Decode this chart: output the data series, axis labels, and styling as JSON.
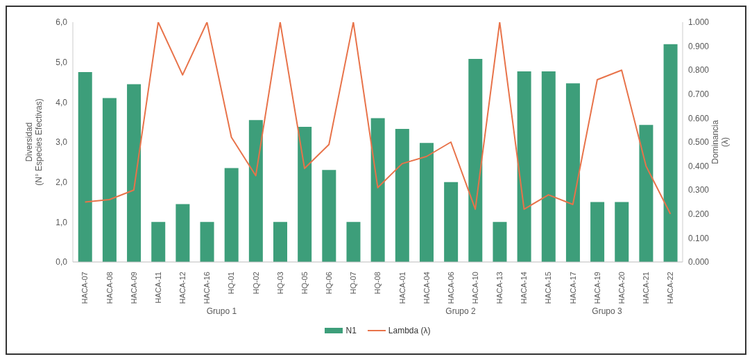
{
  "chart_data": {
    "type": "bar",
    "categories": [
      "HACA-07",
      "HACA-08",
      "HACA-09",
      "HACA-11",
      "HACA-12",
      "HACA-16",
      "HQ-01",
      "HQ-02",
      "HQ-03",
      "HQ-05",
      "HQ-06",
      "HQ-07",
      "HQ-08",
      "HACA-01",
      "HACA-04",
      "HACA-06",
      "HACA-10",
      "HACA-13",
      "HACA-14",
      "HACA-15",
      "HACA-17",
      "HACA-19",
      "HACA-20",
      "HACA-21",
      "HACA-22"
    ],
    "series": [
      {
        "name": "N1",
        "color": "#3d9e7a",
        "values": [
          4.75,
          4.1,
          4.45,
          1.0,
          1.45,
          1.0,
          2.35,
          3.55,
          1.0,
          3.38,
          2.3,
          1.0,
          3.6,
          3.33,
          2.98,
          2.0,
          5.08,
          1.0,
          4.77,
          4.77,
          4.47,
          1.5,
          1.5,
          3.43,
          5.45
        ]
      },
      {
        "name": "Lambda (λ)",
        "type": "line",
        "axis": "y2",
        "color": "#e8734a",
        "values": [
          0.25,
          0.26,
          0.3,
          1.0,
          0.78,
          1.0,
          0.52,
          0.36,
          1.0,
          0.39,
          0.49,
          1.0,
          0.31,
          0.41,
          0.44,
          0.5,
          0.22,
          1.0,
          0.22,
          0.28,
          0.24,
          0.76,
          0.8,
          0.4,
          0.2
        ]
      }
    ],
    "ylabel": "Diversidad\n(N° Especies Efectivas)",
    "y2label": "Dominancia\n(λ)",
    "ylim": [
      0,
      6
    ],
    "yticks": [
      {
        "value": 0,
        "label": "0,0"
      },
      {
        "value": 1,
        "label": "1,0"
      },
      {
        "value": 2,
        "label": "2,0"
      },
      {
        "value": 3,
        "label": "3,0"
      },
      {
        "value": 4,
        "label": "4,0"
      },
      {
        "value": 5,
        "label": "5,0"
      },
      {
        "value": 6,
        "label": "6,0"
      }
    ],
    "y2lim": [
      0,
      1
    ],
    "y2ticks": [
      {
        "value": 0,
        "label": "0.000"
      },
      {
        "value": 0.1,
        "label": "0.100"
      },
      {
        "value": 0.2,
        "label": "0.200"
      },
      {
        "value": 0.3,
        "label": "0.300"
      },
      {
        "value": 0.4,
        "label": "0.400"
      },
      {
        "value": 0.5,
        "label": "0.500"
      },
      {
        "value": 0.6,
        "label": "0.600"
      },
      {
        "value": 0.7,
        "label": "0.700"
      },
      {
        "value": 0.8,
        "label": "0.800"
      },
      {
        "value": 0.9,
        "label": "0.900"
      },
      {
        "value": 1,
        "label": "1.000"
      }
    ],
    "annotations": [
      "Grupo 1",
      "Grupo 2",
      "Grupo 3"
    ],
    "legend": "bottom",
    "marker": "none",
    "line_style": "solid",
    "grid": false
  }
}
